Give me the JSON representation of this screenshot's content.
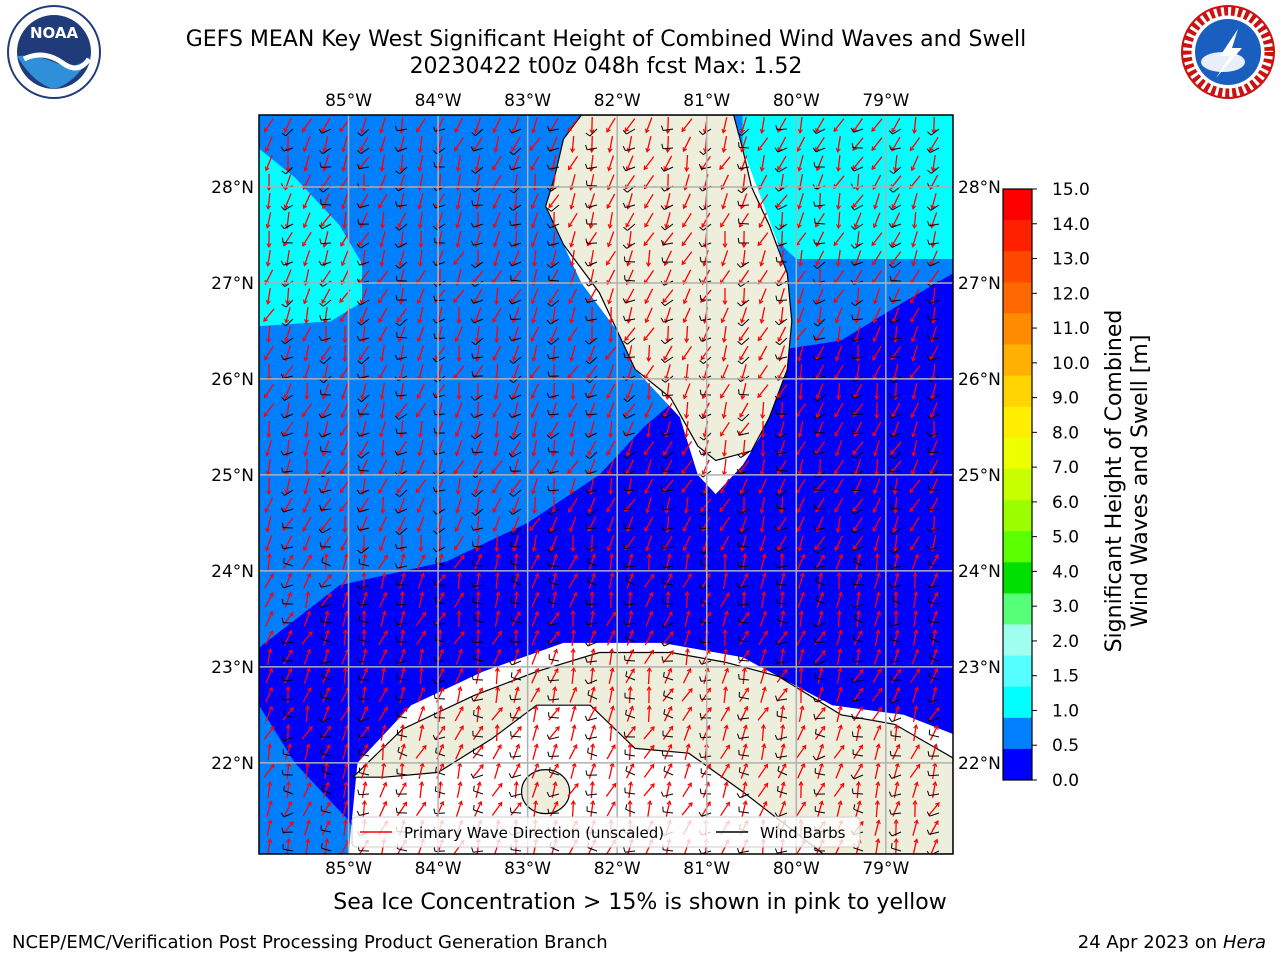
{
  "title": {
    "line1": "GEFS MEAN Key West Significant Height of Combined Wind Waves and Swell",
    "line2": "20230422 t00z 048h fcst   Max: 1.52"
  },
  "map": {
    "lon_ticks": [
      "85°W",
      "84°W",
      "83°W",
      "82°W",
      "81°W",
      "80°W",
      "79°W"
    ],
    "lat_ticks": [
      "28°N",
      "27°N",
      "26°N",
      "25°N",
      "24°N",
      "23°N",
      "22°N"
    ],
    "lon_range": [
      -86.0,
      -78.25
    ],
    "lat_range": [
      21.05,
      28.75
    ],
    "colors": {
      "band_0_0.5": "#0000ff",
      "band_0.5_1.0": "#0080ff",
      "band_1.0_1.5": "#00ffff",
      "land": "#eeeedd",
      "grid": "#b0b0b0",
      "wave_arrow": "#ff0000",
      "wind_barb": "#000000"
    }
  },
  "legend": {
    "wave_label": "Primary Wave Direction (unscaled)",
    "wind_label": "Wind Barbs"
  },
  "colorbar": {
    "label_line1": "Significant Height of Combined",
    "label_line2": "Wind Waves and Swell [m]",
    "ticks": [
      "15.0",
      "14.0",
      "13.0",
      "12.0",
      "11.0",
      "10.0",
      "9.0",
      "8.0",
      "7.0",
      "6.0",
      "5.0",
      "4.0",
      "3.0",
      "2.0",
      "1.5",
      "1.0",
      "0.5",
      "0.0"
    ],
    "colors": [
      "#ff0000",
      "#ff2000",
      "#ff4800",
      "#ff6800",
      "#ff8c00",
      "#ffb000",
      "#ffd400",
      "#ffee00",
      "#eeff00",
      "#c8ff00",
      "#9cff00",
      "#5aff00",
      "#00e000",
      "#55ff77",
      "#a0ffee",
      "#55ffff",
      "#00ffff",
      "#0080ff",
      "#0000ff"
    ]
  },
  "ice_note": "Sea Ice Concentration > 15% is shown in pink to yellow",
  "footer": {
    "left": "NCEP/EMC/Verification Post Processing Product Generation Branch",
    "right_prefix": "24 Apr 2023 on ",
    "right_host": "Hera"
  },
  "logos": {
    "noaa_text": "NOAA",
    "nws_ring_text": "NATIONAL WEATHER SERVICE",
    "noaa_icon": "noaa-logo",
    "nws_icon": "nws-logo"
  }
}
